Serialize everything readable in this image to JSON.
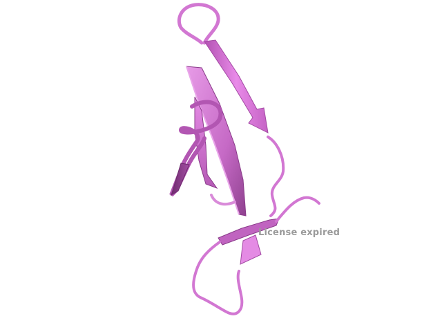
{
  "watermark": {
    "text": "License expired"
  },
  "structure": {
    "style": "cartoon",
    "elements": [
      "beta-strand",
      "beta-strand",
      "beta-strand",
      "helix-turn",
      "loop",
      "loop"
    ]
  },
  "colors": {
    "background": "#ffffff",
    "ribbon_light": "#e88ae8",
    "ribbon_mid": "#cf6fcf",
    "ribbon_dark": "#8a3c8a",
    "ribbon_shadow": "#6f2c6f",
    "watermark": "#9a9a9a"
  }
}
